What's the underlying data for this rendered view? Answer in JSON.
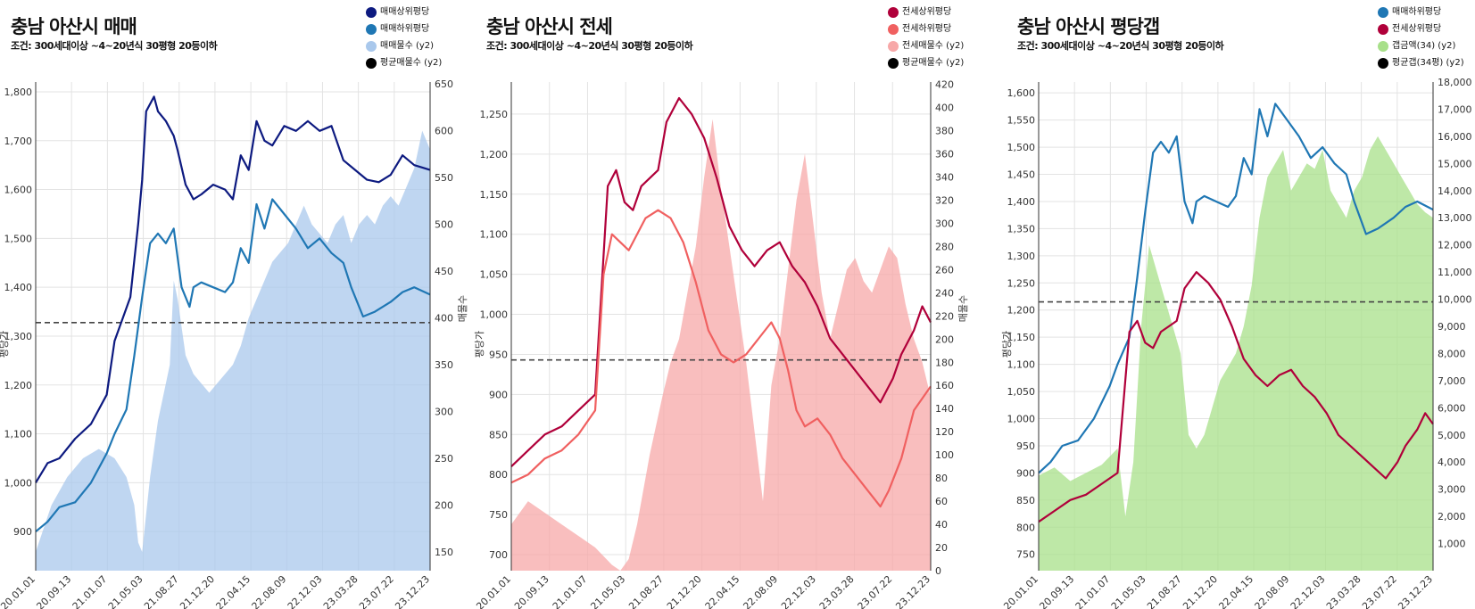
{
  "charts": [
    {
      "title": "충남 아산시 매매",
      "subtitle": "조건: 300세대이상 ~4~20년식 30평형 20등이하",
      "legend": [
        {
          "label": "매매상위평당",
          "color": "#0d1a80"
        },
        {
          "label": "매매하위평당",
          "color": "#1f77b4"
        },
        {
          "label": "매매물수 (y2)",
          "color": "#a9c8ec"
        },
        {
          "label": "평균매물수 (y2)",
          "color": "#000000"
        }
      ]
    },
    {
      "title": "충남 아산시 전세",
      "subtitle": "조건: 300세대이상 ~4~20년식 30평형 20등이하",
      "legend": [
        {
          "label": "전세상위평당",
          "color": "#b0003a"
        },
        {
          "label": "전세하위평당",
          "color": "#f06060"
        },
        {
          "label": "전세매물수 (y2)",
          "color": "#f7a8a8"
        },
        {
          "label": "평균매물수 (y2)",
          "color": "#000000"
        }
      ]
    },
    {
      "title": "충남 아산시 평당갭",
      "subtitle": "조건: 300세대이상 ~4~20년식 30평형 20등이하",
      "legend": [
        {
          "label": "매매하위평당",
          "color": "#1f77b4"
        },
        {
          "label": "전세상위평당",
          "color": "#b0003a"
        },
        {
          "label": "갭금액(34) (y2)",
          "color": "#a8e08a"
        },
        {
          "label": "평균갭(34평) (y2)",
          "color": "#000000"
        }
      ]
    }
  ],
  "chart_data": [
    {
      "type": "line",
      "title": "충남 아산시 매매",
      "ylabel": "평당가",
      "y2label": "매물수",
      "ylim": [
        820,
        1820
      ],
      "y2lim": [
        130,
        652
      ],
      "yticks": [
        900,
        1000,
        1100,
        1200,
        1300,
        1400,
        1500,
        1600,
        1700,
        1800
      ],
      "y2ticks": [
        150,
        200,
        250,
        300,
        350,
        400,
        450,
        500,
        550,
        600,
        650
      ],
      "x_ticks": [
        "20.01.01",
        "20.09.13",
        "21.01.07",
        "21.05.03",
        "21.08.27",
        "21.12.20",
        "22.04.15",
        "22.08.09",
        "22.12.03",
        "23.03.28",
        "23.07.22",
        "23.12.23"
      ],
      "avg_line_y2": 395,
      "series": [
        {
          "name": "매매상위평당",
          "color": "#0d1a80",
          "axis": "y",
          "x": [
            0,
            0.03,
            0.06,
            0.1,
            0.14,
            0.18,
            0.2,
            0.24,
            0.26,
            0.27,
            0.28,
            0.3,
            0.31,
            0.33,
            0.35,
            0.36,
            0.38,
            0.4,
            0.42,
            0.45,
            0.48,
            0.5,
            0.52,
            0.54,
            0.56,
            0.58,
            0.6,
            0.63,
            0.66,
            0.69,
            0.72,
            0.75,
            0.78,
            0.81,
            0.84,
            0.87,
            0.9,
            0.93,
            0.96,
            1.0
          ],
          "values": [
            1000,
            1040,
            1050,
            1090,
            1120,
            1180,
            1290,
            1380,
            1530,
            1620,
            1760,
            1790,
            1760,
            1740,
            1710,
            1680,
            1610,
            1580,
            1590,
            1610,
            1600,
            1580,
            1670,
            1640,
            1740,
            1700,
            1690,
            1730,
            1720,
            1740,
            1720,
            1730,
            1660,
            1640,
            1620,
            1615,
            1630,
            1670,
            1650,
            1640
          ]
        },
        {
          "name": "매매하위평당",
          "color": "#1f77b4",
          "axis": "y",
          "x": [
            0,
            0.03,
            0.06,
            0.1,
            0.14,
            0.18,
            0.2,
            0.23,
            0.25,
            0.27,
            0.29,
            0.31,
            0.33,
            0.35,
            0.37,
            0.39,
            0.4,
            0.42,
            0.45,
            0.48,
            0.5,
            0.52,
            0.54,
            0.56,
            0.58,
            0.6,
            0.63,
            0.66,
            0.69,
            0.72,
            0.75,
            0.78,
            0.8,
            0.83,
            0.86,
            0.9,
            0.93,
            0.96,
            1.0
          ],
          "values": [
            900,
            920,
            950,
            960,
            1000,
            1060,
            1100,
            1150,
            1260,
            1380,
            1490,
            1510,
            1490,
            1520,
            1400,
            1360,
            1400,
            1410,
            1400,
            1390,
            1410,
            1480,
            1450,
            1570,
            1520,
            1580,
            1550,
            1520,
            1480,
            1500,
            1470,
            1450,
            1400,
            1340,
            1350,
            1370,
            1390,
            1400,
            1385
          ]
        },
        {
          "name": "매매물수 (y2)",
          "color": "#a9c8ec",
          "axis": "y2",
          "kind": "area",
          "x": [
            0,
            0.04,
            0.08,
            0.12,
            0.16,
            0.2,
            0.23,
            0.25,
            0.26,
            0.27,
            0.29,
            0.31,
            0.33,
            0.34,
            0.35,
            0.36,
            0.38,
            0.4,
            0.42,
            0.44,
            0.46,
            0.48,
            0.5,
            0.52,
            0.54,
            0.56,
            0.58,
            0.6,
            0.62,
            0.64,
            0.66,
            0.68,
            0.7,
            0.72,
            0.74,
            0.76,
            0.78,
            0.8,
            0.82,
            0.84,
            0.86,
            0.88,
            0.9,
            0.92,
            0.94,
            0.96,
            0.98,
            1.0
          ],
          "values": [
            150,
            200,
            230,
            250,
            260,
            250,
            230,
            200,
            160,
            150,
            230,
            290,
            330,
            350,
            440,
            420,
            360,
            340,
            330,
            320,
            330,
            340,
            350,
            370,
            400,
            420,
            440,
            460,
            470,
            480,
            500,
            520,
            500,
            490,
            480,
            500,
            510,
            480,
            500,
            510,
            500,
            520,
            530,
            520,
            540,
            560,
            600,
            580
          ]
        }
      ]
    },
    {
      "type": "line",
      "title": "충남 아산시 전세",
      "ylabel": "평당가",
      "y2label": "매물수",
      "ylim": [
        680,
        1290
      ],
      "y2lim": [
        0,
        422
      ],
      "yticks": [
        700,
        750,
        800,
        850,
        900,
        950,
        1000,
        1050,
        1100,
        1150,
        1200,
        1250
      ],
      "y2ticks": [
        0,
        20,
        40,
        60,
        80,
        100,
        120,
        140,
        160,
        180,
        200,
        220,
        240,
        260,
        280,
        300,
        320,
        340,
        360,
        380,
        400,
        420
      ],
      "x_ticks": [
        "20.01.01",
        "20.09.13",
        "21.01.07",
        "21.05.03",
        "21.08.27",
        "21.12.20",
        "22.04.15",
        "22.08.09",
        "22.12.03",
        "23.03.28",
        "23.07.22",
        "23.12.23"
      ],
      "avg_line_y2": 182,
      "series": [
        {
          "name": "전세상위평당",
          "color": "#b0003a",
          "axis": "y",
          "x": [
            0,
            0.04,
            0.08,
            0.12,
            0.16,
            0.2,
            0.23,
            0.25,
            0.27,
            0.29,
            0.31,
            0.33,
            0.35,
            0.37,
            0.4,
            0.43,
            0.46,
            0.49,
            0.52,
            0.55,
            0.58,
            0.61,
            0.64,
            0.67,
            0.7,
            0.73,
            0.76,
            0.79,
            0.82,
            0.85,
            0.88,
            0.91,
            0.93,
            0.96,
            0.98,
            1.0
          ],
          "values": [
            810,
            830,
            850,
            860,
            880,
            900,
            1160,
            1180,
            1140,
            1130,
            1160,
            1170,
            1180,
            1240,
            1270,
            1250,
            1220,
            1170,
            1110,
            1080,
            1060,
            1080,
            1090,
            1060,
            1040,
            1010,
            970,
            950,
            930,
            910,
            890,
            920,
            950,
            980,
            1010,
            990
          ]
        },
        {
          "name": "전세하위평당",
          "color": "#f06060",
          "axis": "y",
          "x": [
            0,
            0.04,
            0.08,
            0.12,
            0.16,
            0.2,
            0.22,
            0.24,
            0.26,
            0.28,
            0.3,
            0.32,
            0.35,
            0.38,
            0.41,
            0.44,
            0.47,
            0.5,
            0.53,
            0.56,
            0.59,
            0.62,
            0.64,
            0.66,
            0.68,
            0.7,
            0.73,
            0.76,
            0.79,
            0.82,
            0.85,
            0.88,
            0.9,
            0.93,
            0.96,
            1.0
          ],
          "values": [
            790,
            800,
            820,
            830,
            850,
            880,
            1050,
            1100,
            1090,
            1080,
            1100,
            1120,
            1130,
            1120,
            1090,
            1040,
            980,
            950,
            940,
            950,
            970,
            990,
            970,
            930,
            880,
            860,
            870,
            850,
            820,
            800,
            780,
            760,
            780,
            820,
            880,
            910
          ]
        },
        {
          "name": "전세매물수 (y2)",
          "color": "#f7a8a8",
          "axis": "y2",
          "kind": "area",
          "x": [
            0,
            0.04,
            0.08,
            0.12,
            0.16,
            0.2,
            0.24,
            0.26,
            0.28,
            0.3,
            0.33,
            0.36,
            0.38,
            0.4,
            0.42,
            0.44,
            0.46,
            0.48,
            0.5,
            0.52,
            0.54,
            0.56,
            0.58,
            0.6,
            0.62,
            0.64,
            0.66,
            0.68,
            0.7,
            0.72,
            0.74,
            0.76,
            0.78,
            0.8,
            0.82,
            0.84,
            0.86,
            0.88,
            0.9,
            0.92,
            0.94,
            0.96,
            0.98,
            1.0
          ],
          "values": [
            40,
            60,
            50,
            40,
            30,
            20,
            5,
            0,
            10,
            40,
            100,
            150,
            180,
            200,
            240,
            280,
            340,
            390,
            330,
            280,
            230,
            180,
            120,
            60,
            160,
            200,
            260,
            320,
            360,
            300,
            240,
            200,
            230,
            260,
            270,
            250,
            240,
            260,
            280,
            270,
            230,
            200,
            180,
            150
          ]
        }
      ]
    },
    {
      "type": "line",
      "title": "충남 아산시 평당갭",
      "ylabel": "평당가",
      "y2label": "",
      "ylim": [
        720,
        1620
      ],
      "y2lim": [
        0,
        18000
      ],
      "yticks": [
        750,
        800,
        850,
        900,
        950,
        1000,
        1050,
        1100,
        1150,
        1200,
        1250,
        1300,
        1350,
        1400,
        1450,
        1500,
        1550,
        1600
      ],
      "y2ticks": [
        1000,
        2000,
        3000,
        4000,
        5000,
        6000,
        7000,
        8000,
        9000,
        10000,
        11000,
        12000,
        13000,
        14000,
        15000,
        16000,
        17000,
        18000
      ],
      "x_ticks": [
        "20.01.01",
        "20.09.13",
        "21.01.07",
        "21.05.03",
        "21.08.27",
        "21.12.20",
        "22.04.15",
        "22.08.09",
        "22.12.03",
        "23.03.28",
        "23.07.22",
        "23.12.23"
      ],
      "avg_line_y2": 9900,
      "series": [
        {
          "name": "매매하위평당",
          "color": "#1f77b4",
          "axis": "y",
          "x": [
            0,
            0.03,
            0.06,
            0.1,
            0.14,
            0.18,
            0.2,
            0.23,
            0.25,
            0.27,
            0.29,
            0.31,
            0.33,
            0.35,
            0.37,
            0.39,
            0.4,
            0.42,
            0.45,
            0.48,
            0.5,
            0.52,
            0.54,
            0.56,
            0.58,
            0.6,
            0.63,
            0.66,
            0.69,
            0.72,
            0.75,
            0.78,
            0.8,
            0.83,
            0.86,
            0.9,
            0.93,
            0.96,
            1.0
          ],
          "values": [
            900,
            920,
            950,
            960,
            1000,
            1060,
            1100,
            1150,
            1260,
            1380,
            1490,
            1510,
            1490,
            1520,
            1400,
            1360,
            1400,
            1410,
            1400,
            1390,
            1410,
            1480,
            1450,
            1570,
            1520,
            1580,
            1550,
            1520,
            1480,
            1500,
            1470,
            1450,
            1400,
            1340,
            1350,
            1370,
            1390,
            1400,
            1385
          ]
        },
        {
          "name": "전세상위평당",
          "color": "#b0003a",
          "axis": "y",
          "x": [
            0,
            0.04,
            0.08,
            0.12,
            0.16,
            0.2,
            0.23,
            0.25,
            0.27,
            0.29,
            0.31,
            0.33,
            0.35,
            0.37,
            0.4,
            0.43,
            0.46,
            0.49,
            0.52,
            0.55,
            0.58,
            0.61,
            0.64,
            0.67,
            0.7,
            0.73,
            0.76,
            0.79,
            0.82,
            0.85,
            0.88,
            0.91,
            0.93,
            0.96,
            0.98,
            1.0
          ],
          "values": [
            810,
            830,
            850,
            860,
            880,
            900,
            1160,
            1180,
            1140,
            1130,
            1160,
            1170,
            1180,
            1240,
            1270,
            1250,
            1220,
            1170,
            1110,
            1080,
            1060,
            1080,
            1090,
            1060,
            1040,
            1010,
            970,
            950,
            930,
            910,
            890,
            920,
            950,
            980,
            1010,
            990
          ]
        },
        {
          "name": "갭금액(34) (y2)",
          "color": "#a8e08a",
          "axis": "y2",
          "kind": "area",
          "x": [
            0,
            0.04,
            0.08,
            0.12,
            0.16,
            0.2,
            0.22,
            0.24,
            0.26,
            0.28,
            0.3,
            0.32,
            0.34,
            0.36,
            0.38,
            0.4,
            0.42,
            0.44,
            0.46,
            0.48,
            0.5,
            0.52,
            0.54,
            0.56,
            0.58,
            0.6,
            0.62,
            0.64,
            0.66,
            0.68,
            0.7,
            0.72,
            0.74,
            0.76,
            0.78,
            0.8,
            0.82,
            0.84,
            0.86,
            0.88,
            0.9,
            0.92,
            0.94,
            0.96,
            0.98,
            1.0
          ],
          "values": [
            3500,
            3800,
            3300,
            3600,
            3900,
            4500,
            2000,
            4000,
            9000,
            12000,
            11000,
            10000,
            9000,
            8000,
            5000,
            4500,
            5000,
            6000,
            7000,
            7500,
            8000,
            9000,
            10500,
            13000,
            14500,
            15000,
            15500,
            14000,
            14500,
            15000,
            14800,
            15500,
            14000,
            13500,
            13000,
            14000,
            14500,
            15500,
            16000,
            15500,
            15000,
            14500,
            14000,
            13500,
            13200,
            13000
          ]
        }
      ]
    }
  ]
}
